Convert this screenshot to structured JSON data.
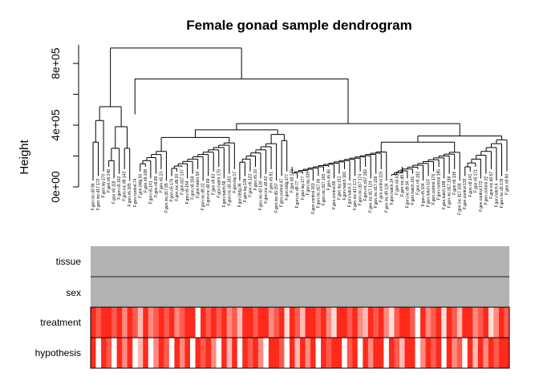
{
  "chart_data": {
    "type": "dendrogram",
    "title": "Female gonad sample dendrogram",
    "ylabel": "Height",
    "y_ticks": [
      "0e+00",
      "4e+05",
      "8e+05"
    ],
    "y_tick_values": [
      0,
      400000,
      800000
    ],
    "ylim": [
      0,
      920000
    ],
    "annotation_rows": [
      "tissue",
      "sex",
      "treatment",
      "hypothesis"
    ],
    "leaf_labels": [
      "F.gon.inc.d3.96",
      "F.gon.inc.d17.172",
      "F.gon.lay.170",
      "F.gon.n5.148",
      "F.gon.n9.118",
      "F.gon.n5.162",
      "F.gon.inc.d9.143",
      "F.gon.n5.165",
      "F.gon.control.74",
      "F.gon.bldg.50",
      "F.gon.n9.108",
      "F.gon.n5.141",
      "F.gon.n9.89",
      "F.gon.n5.23",
      "F.gon.inc.d17.95",
      "F.gon.n5.176",
      "F.gon.inc.d9.20",
      "F.gon.d17.137",
      "F.gon.n5.154",
      "F.gon.n9.159",
      "F.gon.hatch.59",
      "F.gon.inc.d9.22",
      "F.gon.inc.d3.69",
      "F.gon.n9.83",
      "F.gon.hatch.175",
      "F.gon.hatch.58",
      "F.gon.inc.d3.181",
      "F.gon.lay.17",
      "F.gon.bldg.36",
      "F.gon.lay.139",
      "F.gon.n5.123",
      "F.gon.n5.10",
      "F.gon.inc.d3.130",
      "F.gon.inc.d3.62",
      "F.gon.n5.81",
      "F.gon.inc.d9.157",
      "F.gon.control.47",
      "F.gon.bldg.177",
      "F.gon.d3.172",
      "F.gon.inc.d9.77",
      "F.gon.lay.177",
      "F.gon.lay.109",
      "F.gon.control.163",
      "F.gon.inc.d17.66",
      "F.gon.inc.d17.165",
      "F.gon.n5.86",
      "F.gon.control.86",
      "F.gon.lay.151",
      "F.gon.hatch.160",
      "F.gon.hatch.3",
      "F.gon.inc.d17.171",
      "F.gon.inc.d17.174",
      "F.gon.inc.d17.182",
      "F.gon.inc.d17.124",
      "F.gon.inc.d17.159",
      "F.gon.control.115",
      "F.gon.inc.d9.126",
      "F.gon.hatch.14",
      "F.gon.n5.61",
      "F.gon.inc.d9.80",
      "F.gon.inc.d9.94",
      "F.gon.hatch.191",
      "F.gon.n9.182",
      "F.gon.n5.104",
      "F.gon.hatch.107",
      "F.gon.control.176",
      "F.gon.control.185",
      "F.gon.hatch.188",
      "F.gon.inc.d17.188",
      "F.gon.n5.138",
      "F.gon.inc.d17.168",
      "F.gon.control.133",
      "F.gon.n9.141",
      "F.gon.n5.171",
      "F.gon.control.172",
      "F.gon.control.32",
      "F.gon.inc.d3.57",
      "F.gon.hatch.6",
      "F.gon.inc.d3.178",
      "F.gon.n9.80"
    ],
    "track_colors": {
      "tissue": "#b2b2b2",
      "sex": "#b2b2b2",
      "treatment_palette": [
        "#ff2a1c",
        "#ff5a4e",
        "#ff8a80",
        "#ffbab4",
        "#ffdcd8",
        "#ffffff"
      ]
    },
    "treatment_levels": [
      0,
      1,
      0,
      0,
      1,
      0,
      2,
      0,
      1,
      3,
      0,
      2,
      1,
      0,
      1,
      0,
      2,
      1,
      0,
      0,
      5,
      0,
      1,
      0,
      1,
      0,
      2,
      1,
      3,
      0,
      0,
      1,
      0,
      0,
      2,
      1,
      0,
      4,
      0,
      1,
      3,
      0,
      0,
      1,
      0,
      2,
      4,
      0,
      0,
      1,
      0,
      2,
      3,
      0,
      1,
      0,
      2,
      4,
      1,
      0,
      0,
      1,
      5,
      0,
      2,
      1,
      0,
      4,
      0,
      1,
      3,
      0,
      0,
      2,
      1,
      0,
      4,
      2,
      0,
      1
    ],
    "hypothesis_levels": [
      0,
      5,
      0,
      1,
      5,
      0,
      2,
      0,
      5,
      3,
      0,
      5,
      2,
      0,
      1,
      5,
      0,
      2,
      0,
      5,
      0,
      1,
      0,
      2,
      5,
      0,
      3,
      0,
      5,
      0,
      1,
      0,
      2,
      5,
      0,
      0,
      1,
      5,
      0,
      3,
      0,
      2,
      0,
      5,
      0,
      1,
      0,
      0,
      5,
      1,
      0,
      5,
      0,
      2,
      0,
      0,
      5,
      0,
      1,
      3,
      0,
      0,
      5,
      2,
      0,
      1,
      0,
      5,
      0,
      2,
      1,
      5,
      0,
      3,
      0,
      2,
      0,
      1,
      0,
      0
    ]
  }
}
